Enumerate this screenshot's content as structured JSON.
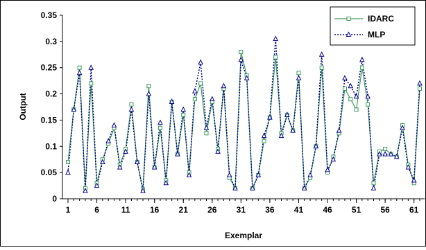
{
  "chart_data": {
    "type": "line",
    "title": "",
    "xlabel": "Exemplar",
    "ylabel": "Output",
    "ylim": [
      0,
      0.35
    ],
    "xlim": [
      1,
      62
    ],
    "yticks": [
      "0",
      "0.05",
      "0.1",
      "0.15",
      "0.2",
      "0.25",
      "0.3",
      "0.35"
    ],
    "xticks": [
      "1",
      "6",
      "11",
      "16",
      "21",
      "26",
      "31",
      "36",
      "41",
      "46",
      "51",
      "56",
      "61"
    ],
    "grid": false,
    "legend": "top-right",
    "series": [
      {
        "name": "IDARC",
        "color": "#3a9a5a",
        "line_style": "solid",
        "marker": "square",
        "values": [
          0.07,
          0.17,
          0.25,
          0.02,
          0.22,
          0.03,
          0.075,
          0.105,
          0.135,
          0.065,
          0.095,
          0.18,
          0.07,
          0.018,
          0.215,
          0.06,
          0.135,
          0.035,
          0.185,
          0.085,
          0.16,
          0.05,
          0.19,
          0.22,
          0.125,
          0.185,
          0.095,
          0.21,
          0.04,
          0.02,
          0.28,
          0.235,
          0.02,
          0.045,
          0.11,
          0.155,
          0.27,
          0.125,
          0.16,
          0.13,
          0.24,
          0.02,
          0.04,
          0.1,
          0.25,
          0.05,
          0.08,
          0.125,
          0.21,
          0.19,
          0.17,
          0.25,
          0.18,
          0.03,
          0.09,
          0.095,
          0.085,
          0.08,
          0.14,
          0.065,
          0.03,
          0.21
        ]
      },
      {
        "name": "MLP",
        "color": "#00008b",
        "line_style": "dotted",
        "marker": "triangle",
        "values": [
          0.05,
          0.17,
          0.24,
          0.015,
          0.25,
          0.025,
          0.07,
          0.11,
          0.14,
          0.06,
          0.09,
          0.17,
          0.07,
          0.015,
          0.2,
          0.06,
          0.145,
          0.03,
          0.185,
          0.085,
          0.17,
          0.045,
          0.205,
          0.26,
          0.135,
          0.19,
          0.09,
          0.215,
          0.045,
          0.02,
          0.265,
          0.23,
          0.02,
          0.045,
          0.12,
          0.155,
          0.305,
          0.12,
          0.16,
          0.13,
          0.23,
          0.02,
          0.045,
          0.1,
          0.275,
          0.055,
          0.075,
          0.13,
          0.23,
          0.215,
          0.195,
          0.265,
          0.195,
          0.02,
          0.085,
          0.085,
          0.085,
          0.08,
          0.135,
          0.06,
          0.035,
          0.22
        ]
      }
    ]
  }
}
